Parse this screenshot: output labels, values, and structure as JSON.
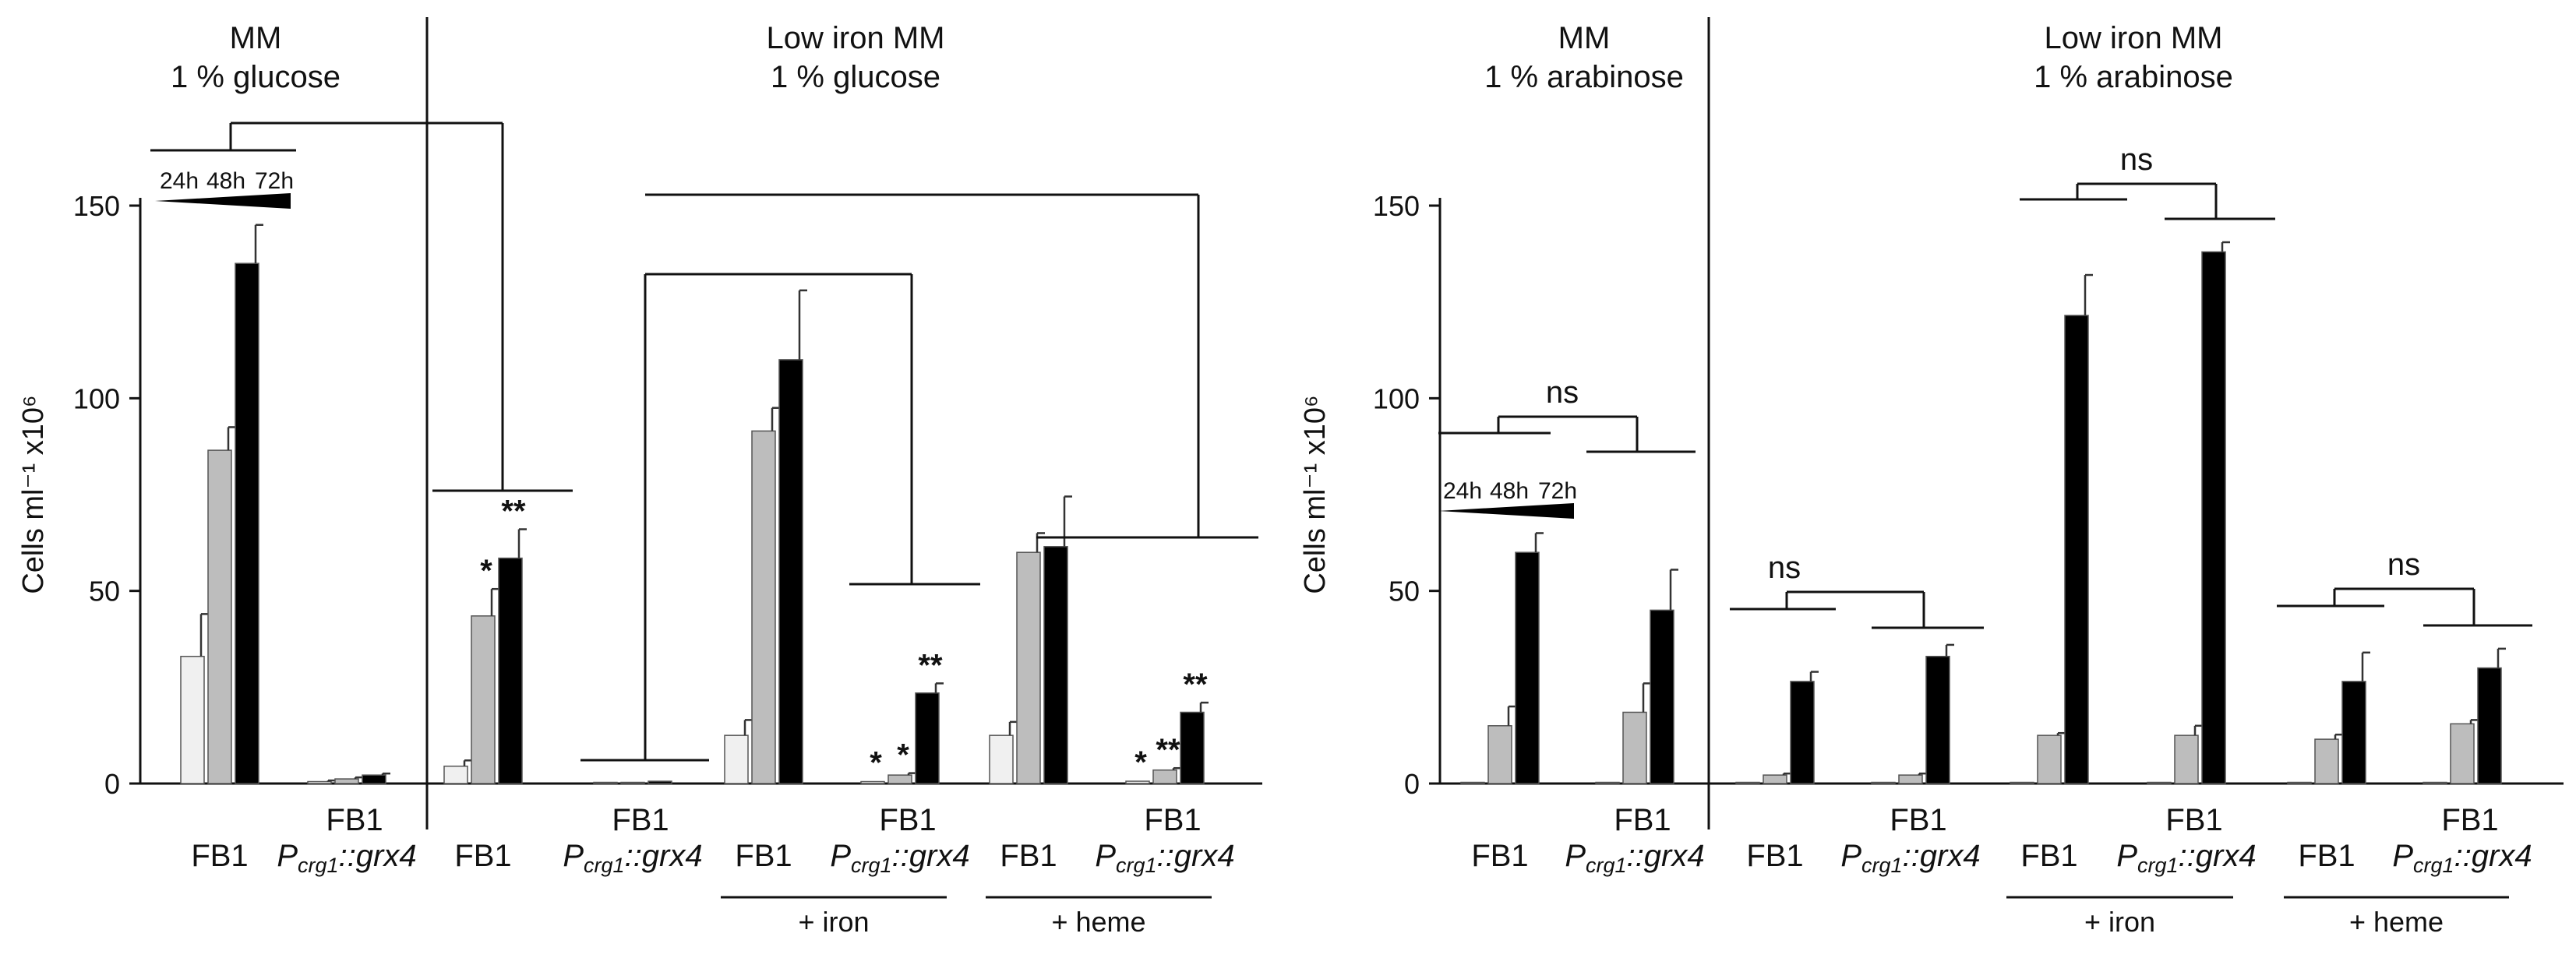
{
  "chart_data": [
    {
      "type": "bar",
      "panel": "glucose",
      "ylabel": "Cells ml⁻¹ x10⁶",
      "ylim": [
        0,
        150
      ],
      "yticks": [
        0,
        50,
        100,
        150
      ],
      "time_series": [
        {
          "name": "24h",
          "color": "#f0f0f0"
        },
        {
          "name": "48h",
          "color": "#bdbdbd"
        },
        {
          "name": "72h",
          "color": "#000000"
        }
      ],
      "headers": [
        {
          "lines": [
            "MM",
            "1 % glucose"
          ]
        },
        {
          "lines": [
            "Low iron MM",
            "1 % glucose"
          ]
        }
      ],
      "groups": [
        {
          "label": "FB1",
          "values": [
            33,
            86.5,
            135
          ],
          "errors": [
            11,
            6,
            10
          ],
          "stars": [
            "",
            "",
            ""
          ]
        },
        {
          "label": "FB1",
          "sublabel": "crg1",
          "strain": "::grx4",
          "values": [
            0.5,
            1.2,
            2.2
          ],
          "errors": [
            0.3,
            0.4,
            0.4
          ],
          "stars": [
            "",
            "",
            ""
          ]
        },
        {
          "label": "FB1",
          "values": [
            4.5,
            43.5,
            58.5
          ],
          "errors": [
            1.5,
            7,
            7.5
          ],
          "stars": [
            "",
            "*",
            "**"
          ]
        },
        {
          "label": "FB1",
          "sublabel": "crg1",
          "strain": "::grx4",
          "values": [
            0.2,
            0.3,
            0.6
          ],
          "errors": [
            0.1,
            0.1,
            0.2
          ],
          "stars": [
            "",
            "",
            ""
          ]
        },
        {
          "label": "FB1",
          "values": [
            12.5,
            91.5,
            110
          ],
          "errors": [
            4,
            6,
            18
          ],
          "stars": [
            "",
            "",
            ""
          ]
        },
        {
          "label": "FB1",
          "sublabel": "crg1",
          "strain": "::grx4",
          "values": [
            0.5,
            2.2,
            23.5
          ],
          "errors": [
            0.2,
            0.5,
            2.5
          ],
          "stars": [
            "*",
            "*",
            "**"
          ]
        },
        {
          "label": "FB1",
          "values": [
            12.5,
            60,
            61.5
          ],
          "errors": [
            3.5,
            5,
            13
          ],
          "stars": [
            "",
            "",
            ""
          ]
        },
        {
          "label": "FB1",
          "sublabel": "crg1",
          "strain": "::grx4",
          "values": [
            0.6,
            3.5,
            18.5
          ],
          "errors": [
            0.2,
            0.5,
            2.5
          ],
          "stars": [
            "*",
            "**",
            "**"
          ]
        }
      ],
      "group_brackets": [
        "+ iron",
        "+ heme"
      ],
      "legend": {
        "labels": [
          "24h",
          "48h",
          "72h"
        ]
      }
    },
    {
      "type": "bar",
      "panel": "arabinose",
      "ylabel": "Cells ml⁻¹ x10⁶",
      "ylim": [
        0,
        150
      ],
      "yticks": [
        0,
        50,
        100,
        150
      ],
      "headers": [
        {
          "lines": [
            "MM",
            "1 % arabinose"
          ]
        },
        {
          "lines": [
            "Low iron MM",
            "1 % arabinose"
          ]
        }
      ],
      "groups": [
        {
          "label": "FB1",
          "values": [
            0.3,
            15,
            60
          ],
          "errors": [
            0.1,
            5,
            5
          ],
          "stars": [
            "",
            "",
            ""
          ]
        },
        {
          "label": "FB1",
          "sublabel": "crg1",
          "strain": "::grx4",
          "values": [
            0.3,
            18.5,
            45
          ],
          "errors": [
            0.1,
            7.5,
            10.5
          ],
          "stars": [
            "",
            "",
            ""
          ]
        },
        {
          "label": "FB1",
          "values": [
            0.3,
            2.2,
            26.5
          ],
          "errors": [
            0.1,
            0.4,
            2.5
          ],
          "stars": [
            "",
            "",
            ""
          ]
        },
        {
          "label": "FB1",
          "sublabel": "crg1",
          "strain": "::grx4",
          "values": [
            0.3,
            2.2,
            33
          ],
          "errors": [
            0.1,
            0.4,
            3
          ],
          "stars": [
            "",
            "",
            ""
          ]
        },
        {
          "label": "FB1",
          "values": [
            0.3,
            12.5,
            121.5
          ],
          "errors": [
            0.1,
            0.6,
            10.5
          ],
          "stars": [
            "",
            "",
            ""
          ]
        },
        {
          "label": "FB1",
          "sublabel": "crg1",
          "strain": "::grx4",
          "values": [
            0.3,
            12.5,
            138
          ],
          "errors": [
            0.1,
            2.5,
            2.5
          ],
          "stars": [
            "",
            "",
            ""
          ]
        },
        {
          "label": "FB1",
          "values": [
            0.3,
            11.5,
            26.5
          ],
          "errors": [
            0.1,
            1.2,
            7.5
          ],
          "stars": [
            "",
            "",
            ""
          ]
        },
        {
          "label": "FB1",
          "sublabel": "crg1",
          "strain": "::grx4",
          "values": [
            0.3,
            15.5,
            30
          ],
          "errors": [
            0.1,
            1,
            5
          ],
          "stars": [
            "",
            "",
            ""
          ]
        }
      ],
      "group_brackets": [
        "+ iron",
        "+ heme"
      ],
      "significance": [
        "ns",
        "ns",
        "ns",
        "ns"
      ],
      "legend": {
        "labels": [
          "24h",
          "48h",
          "72h"
        ]
      }
    }
  ]
}
